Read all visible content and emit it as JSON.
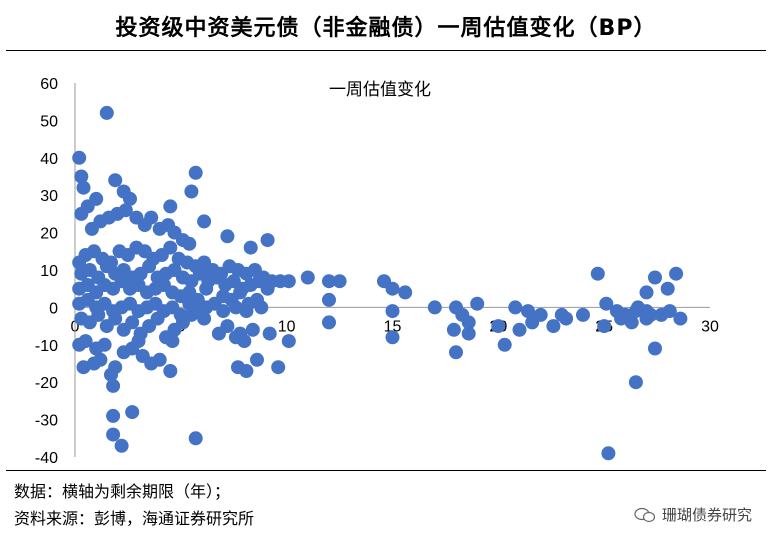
{
  "header": {
    "title": "投资级中资美元债（非金融债）一周估值变化（BP）"
  },
  "footer": {
    "data_note": "数据：横轴为剩余期限（年）；",
    "source_note": "资料来源：彭博，海通证券研究所",
    "watermark": "珊瑚债券研究"
  },
  "chart_data": {
    "type": "scatter",
    "title": "一周估值变化",
    "xlim": [
      0,
      30
    ],
    "ylim": [
      -40,
      60
    ],
    "xticks": [
      "0",
      "5",
      "10",
      "15",
      "20",
      "25",
      "30"
    ],
    "yticks": [
      "60",
      "50",
      "40",
      "30",
      "20",
      "10",
      "0",
      "-10",
      "-20",
      "-30",
      "-40"
    ],
    "grid": false,
    "color": "#4472C4",
    "points": [
      [
        1.5,
        52
      ],
      [
        0.2,
        40
      ],
      [
        0.3,
        35
      ],
      [
        0.4,
        32
      ],
      [
        1.9,
        34
      ],
      [
        2.3,
        31
      ],
      [
        2.6,
        29
      ],
      [
        1.0,
        29
      ],
      [
        0.3,
        25
      ],
      [
        0.6,
        27
      ],
      [
        0.8,
        21
      ],
      [
        1.2,
        23
      ],
      [
        1.6,
        24
      ],
      [
        2.0,
        25
      ],
      [
        2.4,
        26
      ],
      [
        2.9,
        24
      ],
      [
        3.3,
        22
      ],
      [
        3.6,
        24
      ],
      [
        4.0,
        21
      ],
      [
        4.4,
        22
      ],
      [
        4.7,
        20
      ],
      [
        5.1,
        18
      ],
      [
        5.4,
        17
      ],
      [
        5.7,
        36
      ],
      [
        5.5,
        31
      ],
      [
        4.5,
        27
      ],
      [
        6.1,
        23
      ],
      [
        7.2,
        19
      ],
      [
        8.3,
        16
      ],
      [
        9.1,
        18
      ],
      [
        0.2,
        12
      ],
      [
        0.5,
        14
      ],
      [
        0.9,
        15
      ],
      [
        1.3,
        13
      ],
      [
        1.7,
        12
      ],
      [
        2.1,
        15
      ],
      [
        2.5,
        14
      ],
      [
        2.9,
        16
      ],
      [
        3.3,
        15
      ],
      [
        3.7,
        13
      ],
      [
        4.1,
        14
      ],
      [
        4.5,
        16
      ],
      [
        4.9,
        13
      ],
      [
        5.3,
        12
      ],
      [
        5.7,
        11
      ],
      [
        6.1,
        12
      ],
      [
        6.5,
        10
      ],
      [
        6.9,
        9
      ],
      [
        7.3,
        11
      ],
      [
        7.7,
        10
      ],
      [
        8.1,
        9
      ],
      [
        8.5,
        10
      ],
      [
        8.9,
        8
      ],
      [
        9.3,
        7
      ],
      [
        9.7,
        7
      ],
      [
        0.3,
        9
      ],
      [
        0.7,
        10
      ],
      [
        1.1,
        8
      ],
      [
        1.5,
        11
      ],
      [
        1.9,
        9
      ],
      [
        2.3,
        10
      ],
      [
        2.7,
        8
      ],
      [
        3.1,
        9
      ],
      [
        3.5,
        11
      ],
      [
        3.9,
        8
      ],
      [
        4.3,
        9
      ],
      [
        4.7,
        10
      ],
      [
        5.1,
        8
      ],
      [
        5.5,
        7
      ],
      [
        5.9,
        9
      ],
      [
        6.3,
        7
      ],
      [
        6.7,
        8
      ],
      [
        7.1,
        6
      ],
      [
        7.5,
        7
      ],
      [
        7.9,
        5
      ],
      [
        8.3,
        6
      ],
      [
        8.7,
        7
      ],
      [
        9.1,
        5
      ],
      [
        0.2,
        5
      ],
      [
        0.6,
        6
      ],
      [
        1.0,
        4
      ],
      [
        1.4,
        6
      ],
      [
        1.8,
        5
      ],
      [
        2.2,
        7
      ],
      [
        2.6,
        5
      ],
      [
        3.0,
        6
      ],
      [
        3.4,
        4
      ],
      [
        3.8,
        5
      ],
      [
        4.2,
        6
      ],
      [
        4.6,
        4
      ],
      [
        5.0,
        3
      ],
      [
        5.4,
        4
      ],
      [
        5.8,
        2
      ],
      [
        6.2,
        5
      ],
      [
        6.6,
        1
      ],
      [
        7.0,
        3
      ],
      [
        7.4,
        2
      ],
      [
        7.8,
        4
      ],
      [
        8.2,
        1
      ],
      [
        8.6,
        2
      ],
      [
        0.2,
        1
      ],
      [
        0.6,
        2
      ],
      [
        1.0,
        0
      ],
      [
        1.4,
        1
      ],
      [
        1.8,
        -1
      ],
      [
        2.2,
        0
      ],
      [
        2.6,
        1
      ],
      [
        3.0,
        -1
      ],
      [
        3.4,
        0
      ],
      [
        3.8,
        1
      ],
      [
        4.2,
        -1
      ],
      [
        4.6,
        0
      ],
      [
        5.0,
        -2
      ],
      [
        5.4,
        1
      ],
      [
        5.8,
        -1
      ],
      [
        6.2,
        0
      ],
      [
        7.0,
        -1
      ],
      [
        7.6,
        0
      ],
      [
        8.1,
        -1
      ],
      [
        8.8,
        0
      ],
      [
        0.3,
        -3
      ],
      [
        0.7,
        -4
      ],
      [
        1.1,
        -2
      ],
      [
        1.5,
        -5
      ],
      [
        1.9,
        -3
      ],
      [
        2.3,
        -6
      ],
      [
        2.7,
        -4
      ],
      [
        3.1,
        -7
      ],
      [
        3.5,
        -5
      ],
      [
        3.9,
        -3
      ],
      [
        4.3,
        -8
      ],
      [
        4.7,
        -6
      ],
      [
        5.1,
        -4
      ],
      [
        5.5,
        -2
      ],
      [
        6.1,
        -3
      ],
      [
        7.2,
        -5
      ],
      [
        7.8,
        -7
      ],
      [
        8.4,
        -6
      ],
      [
        9.2,
        -7
      ],
      [
        10.1,
        -9
      ],
      [
        0.2,
        -10
      ],
      [
        0.5,
        -9
      ],
      [
        1.0,
        -11
      ],
      [
        1.4,
        -10
      ],
      [
        2.3,
        -12
      ],
      [
        2.7,
        -11
      ],
      [
        3.2,
        -13
      ],
      [
        3.6,
        -15
      ],
      [
        4.0,
        -14
      ],
      [
        4.5,
        -17
      ],
      [
        0.4,
        -16
      ],
      [
        0.9,
        -15
      ],
      [
        1.2,
        -14
      ],
      [
        1.9,
        -16
      ],
      [
        1.7,
        -18
      ],
      [
        1.8,
        -21
      ],
      [
        7.7,
        -16
      ],
      [
        8.1,
        -17
      ],
      [
        8.6,
        -14
      ],
      [
        9.6,
        -16
      ],
      [
        1.8,
        -29
      ],
      [
        2.7,
        -28
      ],
      [
        1.8,
        -34
      ],
      [
        2.2,
        -37
      ],
      [
        5.7,
        -35
      ],
      [
        4.6,
        -9
      ],
      [
        7.6,
        -8
      ],
      [
        8.0,
        -9
      ],
      [
        6.8,
        -7
      ],
      [
        3.0,
        -9
      ],
      [
        10.1,
        7
      ],
      [
        11.0,
        8
      ],
      [
        12.0,
        7
      ],
      [
        12.5,
        7
      ],
      [
        14.6,
        7
      ],
      [
        15.0,
        5
      ],
      [
        15.6,
        4
      ],
      [
        12.0,
        2
      ],
      [
        15.0,
        -1
      ],
      [
        12.0,
        -4
      ],
      [
        15.0,
        -8
      ],
      [
        17.0,
        0
      ],
      [
        18.0,
        0
      ],
      [
        19.0,
        1
      ],
      [
        18.3,
        -2
      ],
      [
        18.6,
        -4
      ],
      [
        17.9,
        -6
      ],
      [
        18.6,
        -7
      ],
      [
        18.0,
        -12
      ],
      [
        20.3,
        -10
      ],
      [
        20.8,
        0
      ],
      [
        21.4,
        -1
      ],
      [
        22.0,
        -2
      ],
      [
        23.0,
        -2
      ],
      [
        20.0,
        -5
      ],
      [
        21.0,
        -6
      ],
      [
        23.2,
        -3
      ],
      [
        24.0,
        -2
      ],
      [
        22.6,
        -5
      ],
      [
        21.6,
        -4
      ],
      [
        24.7,
        9
      ],
      [
        27.4,
        8
      ],
      [
        28.4,
        9
      ],
      [
        26.6,
        0
      ],
      [
        25.1,
        1
      ],
      [
        25.6,
        -1
      ],
      [
        26.0,
        -2
      ],
      [
        27.0,
        -3
      ],
      [
        27.7,
        -2
      ],
      [
        28.1,
        -1
      ],
      [
        28.6,
        -3
      ],
      [
        26.3,
        -4
      ],
      [
        25.0,
        -5
      ],
      [
        25.8,
        -3
      ],
      [
        26.5,
        -1
      ],
      [
        27.2,
        -2
      ],
      [
        28.0,
        5
      ],
      [
        27.0,
        4
      ],
      [
        27.4,
        -11
      ],
      [
        26.5,
        -20
      ],
      [
        25.2,
        -39
      ],
      [
        26.0,
        -2
      ],
      [
        27.0,
        -1
      ]
    ]
  }
}
